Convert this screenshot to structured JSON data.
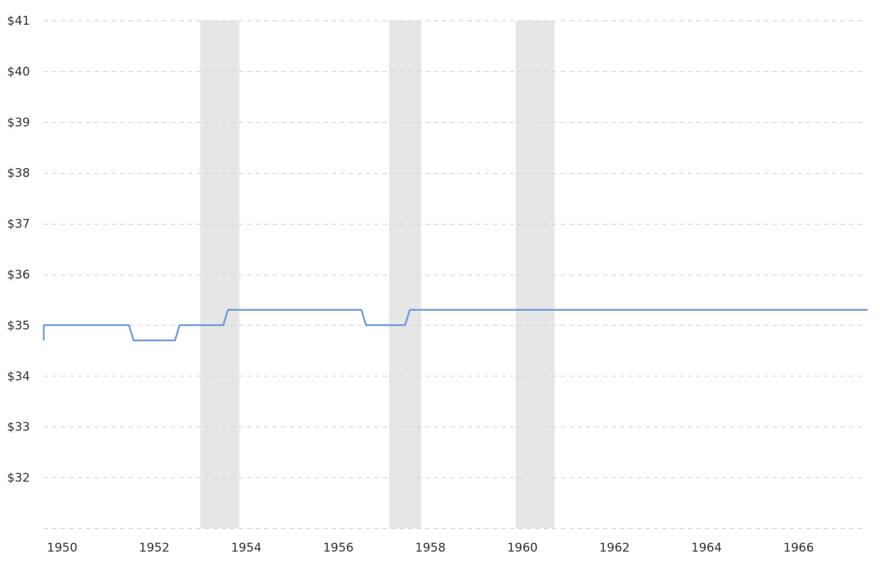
{
  "chart_data": {
    "type": "line",
    "title": "",
    "xlabel": "",
    "ylabel": "",
    "xlim": [
      1949.6,
      1967.4
    ],
    "ylim": [
      31,
      41
    ],
    "y_ticks": [
      {
        "value": 32,
        "label": "$32"
      },
      {
        "value": 33,
        "label": "$33"
      },
      {
        "value": 34,
        "label": "$34"
      },
      {
        "value": 35,
        "label": "$35"
      },
      {
        "value": 36,
        "label": "$36"
      },
      {
        "value": 37,
        "label": "$37"
      },
      {
        "value": 38,
        "label": "$38"
      },
      {
        "value": 39,
        "label": "$39"
      },
      {
        "value": 40,
        "label": "$40"
      },
      {
        "value": 41,
        "label": "$41"
      }
    ],
    "x_ticks": [
      {
        "value": 1950,
        "label": "1950"
      },
      {
        "value": 1952,
        "label": "1952"
      },
      {
        "value": 1954,
        "label": "1954"
      },
      {
        "value": 1956,
        "label": "1956"
      },
      {
        "value": 1958,
        "label": "1958"
      },
      {
        "value": 1960,
        "label": "1960"
      },
      {
        "value": 1962,
        "label": "1962"
      },
      {
        "value": 1964,
        "label": "1964"
      },
      {
        "value": 1966,
        "label": "1966"
      }
    ],
    "grid": "horizontal dashed",
    "recession_bands": [
      {
        "start": 1953.0,
        "end": 1953.85
      },
      {
        "start": 1957.1,
        "end": 1957.8
      },
      {
        "start": 1959.85,
        "end": 1960.7
      }
    ],
    "series": [
      {
        "color": "#6f9bd8",
        "points": [
          {
            "x": 1949.6,
            "y": 34.7
          },
          {
            "x": 1949.6,
            "y": 35.0
          },
          {
            "x": 1951.45,
            "y": 35.0
          },
          {
            "x": 1951.55,
            "y": 34.7
          },
          {
            "x": 1952.45,
            "y": 34.7
          },
          {
            "x": 1952.55,
            "y": 35.0
          },
          {
            "x": 1953.5,
            "y": 35.0
          },
          {
            "x": 1953.6,
            "y": 35.3
          },
          {
            "x": 1956.5,
            "y": 35.3
          },
          {
            "x": 1956.6,
            "y": 35.0
          },
          {
            "x": 1957.45,
            "y": 35.0
          },
          {
            "x": 1957.55,
            "y": 35.3
          },
          {
            "x": 1967.5,
            "y": 35.3
          }
        ]
      }
    ]
  }
}
